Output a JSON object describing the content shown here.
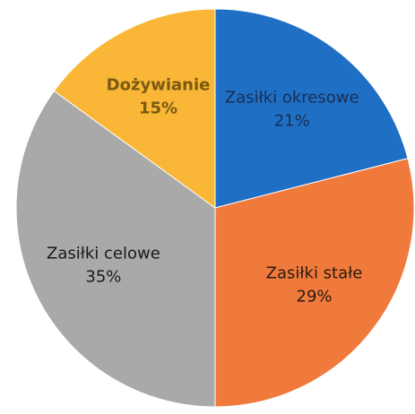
{
  "chart_data": {
    "type": "pie",
    "categories": [
      "Zasiłki okresowe",
      "Zasiłki stałe",
      "Zasiłki celowe",
      "Dożywianie"
    ],
    "values": [
      21,
      29,
      35,
      15
    ],
    "value_labels": [
      "21%",
      "29%",
      "35%",
      "15%"
    ],
    "colors": [
      "#1f6fc4",
      "#ef7a3b",
      "#a9a9a9",
      "#f9b637"
    ]
  }
}
